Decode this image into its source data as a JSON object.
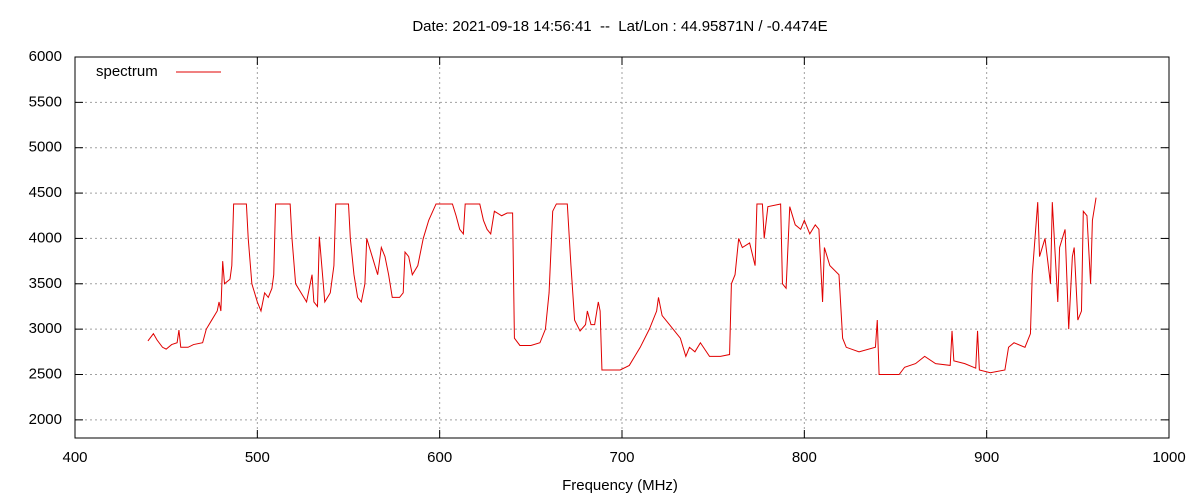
{
  "chart_data": {
    "type": "line",
    "title": "Date: 2021-09-18 14:56:41  --  Lat/Lon : 44.95871N / -0.4474E",
    "x_label": "Frequency (MHz)",
    "xlim": [
      400,
      1000
    ],
    "xticks": [
      400,
      500,
      600,
      700,
      800,
      900,
      1000
    ],
    "ylim": [
      1800,
      6000
    ],
    "yticks": [
      2000,
      2500,
      3000,
      3500,
      4000,
      4500,
      5000,
      5500,
      6000
    ],
    "grid": true,
    "legend": "top-left",
    "x": [
      440,
      443,
      445,
      448,
      450,
      453,
      456,
      457,
      458,
      462,
      465,
      470,
      472,
      475,
      478,
      479,
      480,
      481,
      482,
      485,
      486,
      487,
      494,
      495,
      497,
      500,
      502,
      504,
      506,
      508,
      509,
      510,
      518,
      519,
      521,
      524,
      527,
      530,
      531,
      533,
      534,
      537,
      540,
      542,
      543,
      550,
      551,
      553,
      555,
      557,
      559,
      560,
      563,
      566,
      568,
      570,
      572,
      574,
      578,
      580,
      581,
      583,
      585,
      588,
      591,
      594,
      598,
      607,
      609,
      611,
      613,
      614,
      622,
      624,
      626,
      628,
      630,
      634,
      637,
      640,
      641,
      644,
      650,
      655,
      658,
      660,
      662,
      664,
      670,
      672,
      674,
      677,
      680,
      681,
      683,
      685,
      687,
      688,
      689,
      699,
      704,
      710,
      715,
      719,
      720,
      722,
      726,
      732,
      735,
      737,
      740,
      743,
      748,
      754,
      759,
      760,
      762,
      764,
      766,
      770,
      773,
      774,
      777,
      778,
      780,
      787,
      788,
      790,
      792,
      795,
      798,
      800,
      803,
      806,
      808,
      810,
      811,
      814,
      819,
      821,
      823,
      830,
      839,
      840,
      841,
      852,
      855,
      861,
      866,
      872,
      880,
      881,
      882,
      888,
      894,
      895,
      896,
      902,
      910,
      912,
      915,
      921,
      924,
      925,
      928,
      929,
      932,
      935,
      936,
      939,
      940,
      943,
      945,
      947,
      948,
      950,
      952,
      953,
      955,
      957,
      958,
      960
    ],
    "series": [
      {
        "name": "spectrum",
        "color": "#e00000",
        "values": [
          2870,
          2950,
          2880,
          2800,
          2780,
          2830,
          2850,
          2990,
          2800,
          2800,
          2830,
          2850,
          3000,
          3100,
          3200,
          3300,
          3200,
          3750,
          3500,
          3550,
          3700,
          4380,
          4380,
          4000,
          3500,
          3300,
          3200,
          3400,
          3350,
          3450,
          3600,
          4380,
          4380,
          4000,
          3500,
          3400,
          3300,
          3600,
          3300,
          3250,
          4020,
          3300,
          3400,
          3700,
          4380,
          4380,
          4000,
          3600,
          3350,
          3300,
          3500,
          4000,
          3800,
          3600,
          3900,
          3800,
          3600,
          3350,
          3350,
          3400,
          3850,
          3800,
          3600,
          3700,
          4000,
          4200,
          4380,
          4380,
          4250,
          4100,
          4050,
          4380,
          4380,
          4200,
          4100,
          4050,
          4300,
          4250,
          4280,
          4280,
          2900,
          2820,
          2820,
          2850,
          3000,
          3400,
          4300,
          4380,
          4380,
          3700,
          3100,
          2980,
          3050,
          3200,
          3050,
          3050,
          3300,
          3200,
          2550,
          2550,
          2600,
          2800,
          3000,
          3200,
          3350,
          3150,
          3050,
          2900,
          2700,
          2800,
          2750,
          2850,
          2700,
          2700,
          2720,
          3500,
          3600,
          4000,
          3900,
          3950,
          3700,
          4380,
          4380,
          4000,
          4350,
          4380,
          3500,
          3450,
          4350,
          4150,
          4100,
          4200,
          4050,
          4150,
          4100,
          3300,
          3900,
          3700,
          3600,
          2900,
          2800,
          2750,
          2800,
          3100,
          2500,
          2500,
          2580,
          2620,
          2700,
          2620,
          2600,
          2980,
          2650,
          2620,
          2570,
          2980,
          2550,
          2520,
          2550,
          2800,
          2850,
          2800,
          2950,
          3600,
          4400,
          3800,
          4000,
          3500,
          4400,
          3300,
          3900,
          4100,
          3000,
          3800,
          3900,
          3100,
          3200,
          4300,
          4250,
          3500,
          4200,
          4450
        ]
      }
    ]
  }
}
